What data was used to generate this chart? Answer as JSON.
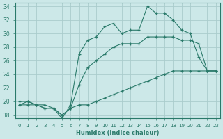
{
  "xlabel": "Humidex (Indice chaleur)",
  "background_color": "#cce8e8",
  "grid_color": "#aacccc",
  "line_color": "#2a7a6a",
  "xlim": [
    -0.5,
    23.5
  ],
  "ylim": [
    17.5,
    34.5
  ],
  "xticks": [
    0,
    1,
    2,
    3,
    4,
    5,
    6,
    7,
    8,
    9,
    10,
    11,
    12,
    13,
    14,
    15,
    16,
    17,
    18,
    19,
    20,
    21,
    22,
    23
  ],
  "yticks": [
    18,
    20,
    22,
    24,
    26,
    28,
    30,
    32,
    34
  ],
  "line_min_x": [
    0,
    1,
    2,
    3,
    4,
    5,
    6,
    7,
    8,
    9,
    10,
    11,
    12,
    13,
    14,
    15,
    16,
    17,
    18,
    19,
    20,
    21,
    22,
    23
  ],
  "line_min_y": [
    19.5,
    19.5,
    19.5,
    19.5,
    19.0,
    18.0,
    19.0,
    19.5,
    19.5,
    20.0,
    20.5,
    21.0,
    21.5,
    22.0,
    22.5,
    23.0,
    23.5,
    24.0,
    24.5,
    24.5,
    24.5,
    24.5,
    24.5,
    24.5
  ],
  "line_max_x": [
    0,
    1,
    2,
    3,
    4,
    5,
    6,
    7,
    8,
    9,
    10,
    11,
    12,
    13,
    14,
    15,
    16,
    17,
    18,
    19,
    20,
    21,
    22,
    23
  ],
  "line_max_y": [
    20.0,
    20.0,
    19.5,
    19.0,
    19.0,
    17.5,
    19.5,
    27.0,
    29.0,
    29.5,
    31.0,
    31.5,
    30.0,
    30.5,
    30.5,
    34.0,
    33.0,
    33.0,
    32.0,
    30.5,
    30.0,
    26.5,
    24.5,
    24.5
  ],
  "line_mean_x": [
    0,
    1,
    2,
    3,
    4,
    5,
    6,
    7,
    8,
    9,
    10,
    11,
    12,
    13,
    14,
    15,
    16,
    17,
    18,
    19,
    20,
    21,
    22,
    23
  ],
  "line_mean_y": [
    19.5,
    20.0,
    19.5,
    19.0,
    19.0,
    18.0,
    19.0,
    22.5,
    25.0,
    26.0,
    27.0,
    28.0,
    28.5,
    28.5,
    28.5,
    29.5,
    29.5,
    29.5,
    29.5,
    29.0,
    29.0,
    28.5,
    24.5,
    24.5
  ]
}
